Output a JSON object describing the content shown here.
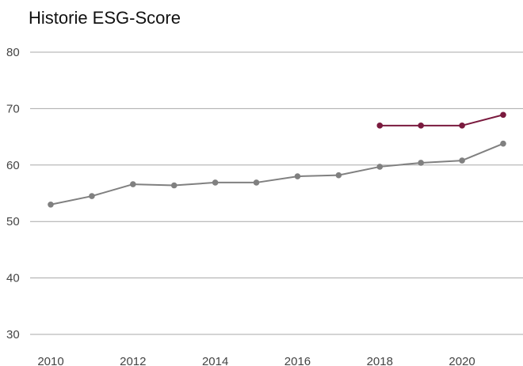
{
  "chart_data": {
    "type": "line",
    "title": "Historie ESG-Score",
    "xlabel": "",
    "ylabel": "",
    "x_ticks": [
      2010,
      2012,
      2014,
      2016,
      2018,
      2020
    ],
    "y_ticks": [
      30,
      40,
      50,
      60,
      70,
      80
    ],
    "xlim": [
      2010,
      2021
    ],
    "ylim": [
      30,
      80
    ],
    "grid": true,
    "legend": "none",
    "series": [
      {
        "color": "#808080",
        "x": [
          2010,
          2011,
          2012,
          2013,
          2014,
          2015,
          2016,
          2017,
          2018,
          2019,
          2020,
          2021
        ],
        "y": [
          53.0,
          54.5,
          56.6,
          56.4,
          56.9,
          56.9,
          58.0,
          58.2,
          59.7,
          60.4,
          60.8,
          63.8
        ]
      },
      {
        "color": "#7a1a3e",
        "x": [
          2018,
          2019,
          2020,
          2021
        ],
        "y": [
          67.0,
          67.0,
          67.0,
          68.9
        ]
      }
    ]
  }
}
